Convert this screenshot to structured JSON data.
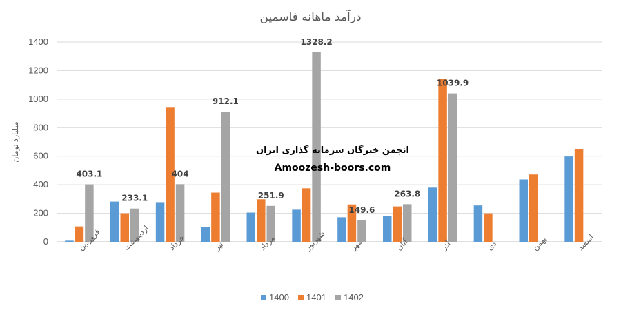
{
  "chart_data": {
    "type": "bar",
    "title": "درآمد ماهانه فاسمین",
    "ylabel": "میلیارد تومان",
    "xlabel": "",
    "ylim": [
      0,
      1400
    ],
    "yticks": [
      0,
      200,
      400,
      600,
      800,
      1000,
      1200,
      1400
    ],
    "grid": true,
    "legend_position": "bottom",
    "categories": [
      "فروردین",
      "اردیبهشت",
      "خرداد",
      "تیر",
      "مرداد",
      "شهریور",
      "مهر",
      "آبان",
      "آذر",
      "دی",
      "بهمن",
      "اسفند"
    ],
    "series": [
      {
        "name": "1400",
        "color": "#5B9BD5",
        "values": [
          8,
          282,
          278,
          103,
          205,
          225,
          172,
          183,
          380,
          255,
          437,
          598
        ]
      },
      {
        "name": "1401",
        "color": "#ED7D31",
        "values": [
          108,
          200,
          940,
          345,
          298,
          375,
          262,
          248,
          1140,
          200,
          472,
          648
        ]
      },
      {
        "name": "1402",
        "color": "#A5A5A5",
        "values": [
          403.1,
          233.1,
          404,
          912.1,
          251.9,
          1328.2,
          149.6,
          263.8,
          1039.9,
          null,
          null,
          null
        ]
      }
    ],
    "data_labels": [
      "403.1",
      "233.1",
      "404",
      "912.1",
      "251.9",
      "1328.2",
      "149.6",
      "263.8",
      "1039.9"
    ]
  },
  "watermark": {
    "line1": "انجمن خبرگان سرمایه گذاری ایران",
    "line2": "Amoozesh-boors.com"
  }
}
